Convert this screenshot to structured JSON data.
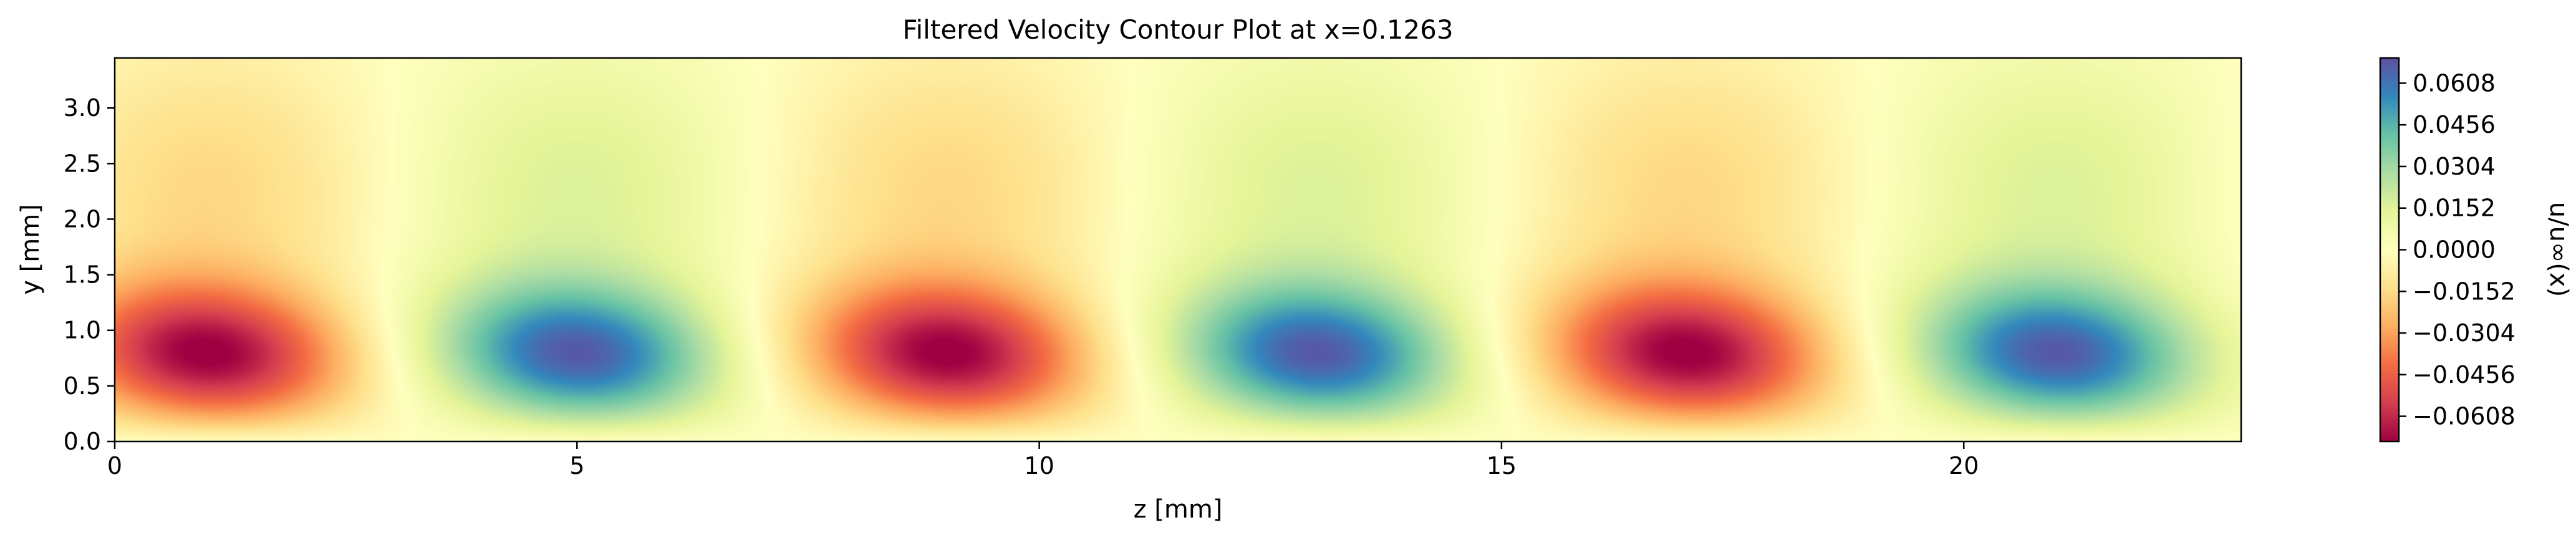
{
  "chart_data": {
    "type": "heatmap",
    "title": "Filtered Velocity Contour Plot at x=0.1263",
    "xlabel": "z [mm]",
    "ylabel": "y [mm]",
    "xlim": [
      0,
      23
    ],
    "ylim": [
      0,
      3.45
    ],
    "xticks": [
      0,
      5,
      10,
      15,
      20
    ],
    "yticks": [
      0.0,
      0.5,
      1.0,
      1.5,
      2.0,
      2.5,
      3.0
    ],
    "ytick_labels": [
      "0.0",
      "0.5",
      "1.0",
      "1.5",
      "2.0",
      "2.5",
      "3.0"
    ],
    "colorbar": {
      "label": "u/u∞(x)",
      "min": -0.07,
      "max": 0.07,
      "ticks": [
        0.0608,
        0.0456,
        0.0304,
        0.0152,
        0.0,
        -0.0152,
        -0.0304,
        -0.0456,
        -0.0608
      ],
      "tick_labels": [
        "0.0608",
        "0.0456",
        "0.0304",
        "0.0152",
        "0.0000",
        "−0.0152",
        "−0.0304",
        "−0.0456",
        "−0.0608"
      ],
      "colormap": "Spectral",
      "colormap_stops": [
        "#9e0142",
        "#d53e4f",
        "#f46d43",
        "#fdae61",
        "#fee08b",
        "#ffffbf",
        "#e6f598",
        "#abdda4",
        "#66c2a5",
        "#3288bd",
        "#5e4fa2"
      ]
    },
    "field": {
      "description_model": "u = sum of Gaussian lobes plus a weak wide upper band",
      "lobes": [
        {
          "z": 1.0,
          "y": 0.78,
          "amplitude": -0.068
        },
        {
          "z": 5.0,
          "y": 0.78,
          "amplitude": 0.064
        },
        {
          "z": 9.0,
          "y": 0.78,
          "amplitude": -0.068
        },
        {
          "z": 13.0,
          "y": 0.78,
          "amplitude": 0.064
        },
        {
          "z": 17.0,
          "y": 0.78,
          "amplitude": -0.068
        },
        {
          "z": 21.0,
          "y": 0.78,
          "amplitude": 0.064
        }
      ],
      "lobe_z_sigma": 1.05,
      "lobe_y_sigma": 0.45,
      "upper_band_amplitude": 0.016,
      "upper_band_y": 2.3,
      "upper_band_y_sigma": 0.9,
      "period_z": 8.0
    },
    "grid": false,
    "legend": "colorbar-right"
  }
}
